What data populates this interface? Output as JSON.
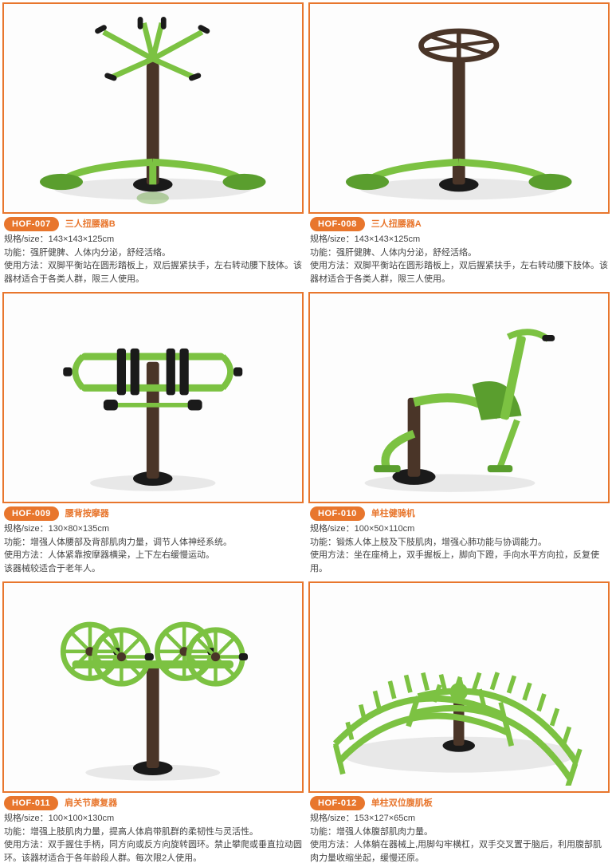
{
  "colors": {
    "accent": "#e8762d",
    "green": "#7cc242",
    "darkGreen": "#5a9e2e",
    "brown": "#4a3528",
    "black": "#1a1a1a",
    "shadow": "#e8e8e8"
  },
  "labels": {
    "size": "规格/size：",
    "func": "功能：",
    "usage": "使用方法："
  },
  "products": [
    {
      "code": "HOF-007",
      "name": "三人扭腰器B",
      "size": "143×143×125cm",
      "func": "强肝健脾、人体内分泌，舒经活络。",
      "usage": "双脚平衡站在圆形踏板上，双后握紧扶手，左右转动腰下肢体。该器材适合于各类人群，限三人使用。",
      "svg": "twisterB"
    },
    {
      "code": "HOF-008",
      "name": "三人扭腰器A",
      "size": "143×143×125cm",
      "func": "强肝健脾、人体内分泌，舒经活络。",
      "usage": "双脚平衡站在圆形踏板上，双后握紧扶手，左右转动腰下肢体。该器材适合于各类人群，限三人使用。",
      "svg": "twisterA"
    },
    {
      "code": "HOF-009",
      "name": "腰背按摩器",
      "size": "130×80×135cm",
      "func": "增强人体腰部及背部肌肉力量，调节人体神经系统。",
      "usage": "人体紧靠按摩器横梁，上下左右缓慢运动。\n该器械较适合于老年人。",
      "svg": "massager"
    },
    {
      "code": "HOF-010",
      "name": "单柱健骑机",
      "size": "100×50×110cm",
      "func": "锻炼人体上肢及下肢肌肉，增强心肺功能与协调能力。",
      "usage": "坐在座椅上，双手握板上，脚向下蹬，手向水平方向拉，反复使用。",
      "svg": "rider"
    },
    {
      "code": "HOF-011",
      "name": "肩关节康复器",
      "size": "100×100×130cm",
      "func": "增强上肢肌肉力量，提高人体肩带肌群的柔韧性与灵活性。",
      "usage": "双手握住手柄，同方向或反方向旋转圆环。禁止攀爬或垂直拉动圆环。该器材适合于各年龄段人群。每次限2人使用。",
      "svg": "shoulder"
    },
    {
      "code": "HOF-012",
      "name": "单柱双位腹肌板",
      "size": "153×127×65cm",
      "func": "增强人体腹部肌肉力量。",
      "usage": "人体躺在器械上,用脚勾牢横杠，双手交叉置于脑后，利用腹部肌肉力量收缩坐起，缓慢还原。",
      "svg": "situp"
    }
  ]
}
